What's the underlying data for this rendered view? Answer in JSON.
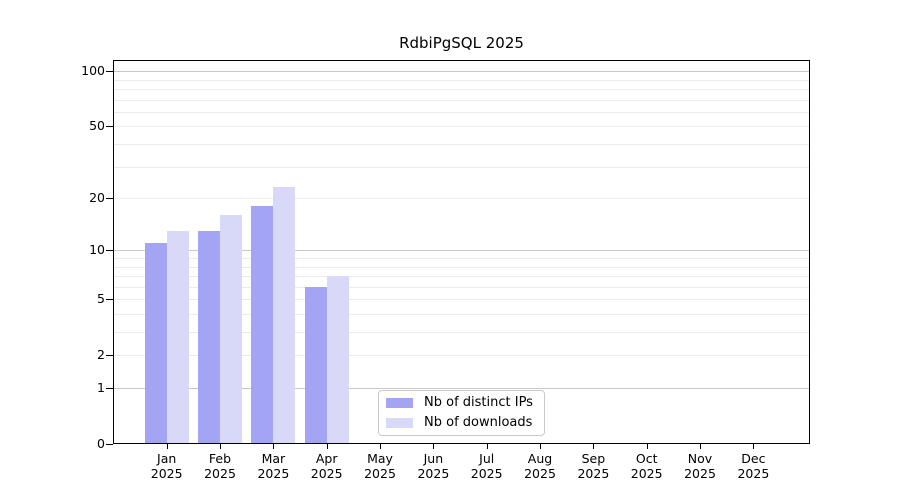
{
  "chart_data": {
    "type": "bar",
    "title": "RdbiPgSQL 2025",
    "categories": [
      "Jan 2025",
      "Feb 2025",
      "Mar 2025",
      "Apr 2025",
      "May 2025",
      "Jun 2025",
      "Jul 2025",
      "Aug 2025",
      "Sep 2025",
      "Oct 2025",
      "Nov 2025",
      "Dec 2025"
    ],
    "series": [
      {
        "name": "Nb of distinct IPs",
        "color": "#a4a4f4",
        "values": [
          11,
          13,
          18,
          6,
          0,
          0,
          0,
          0,
          0,
          0,
          0,
          0
        ]
      },
      {
        "name": "Nb of downloads",
        "color": "#d8d8f8",
        "values": [
          13,
          16,
          23,
          7,
          0,
          0,
          0,
          0,
          0,
          0,
          0,
          0
        ]
      }
    ],
    "xlabel": "",
    "ylabel": "",
    "y_ticks": [
      0,
      1,
      2,
      5,
      10,
      20,
      50,
      100
    ],
    "y_scale": "log1p",
    "ylim": [
      0,
      115
    ],
    "grid": "horizontal",
    "legend_position": "bottom-center"
  },
  "colors": {
    "axis": "#000000",
    "grid_major": "#c8c8c8",
    "grid_minor": "#ebebeb",
    "legend_border": "#c9c9c9",
    "background": "#ffffff"
  }
}
